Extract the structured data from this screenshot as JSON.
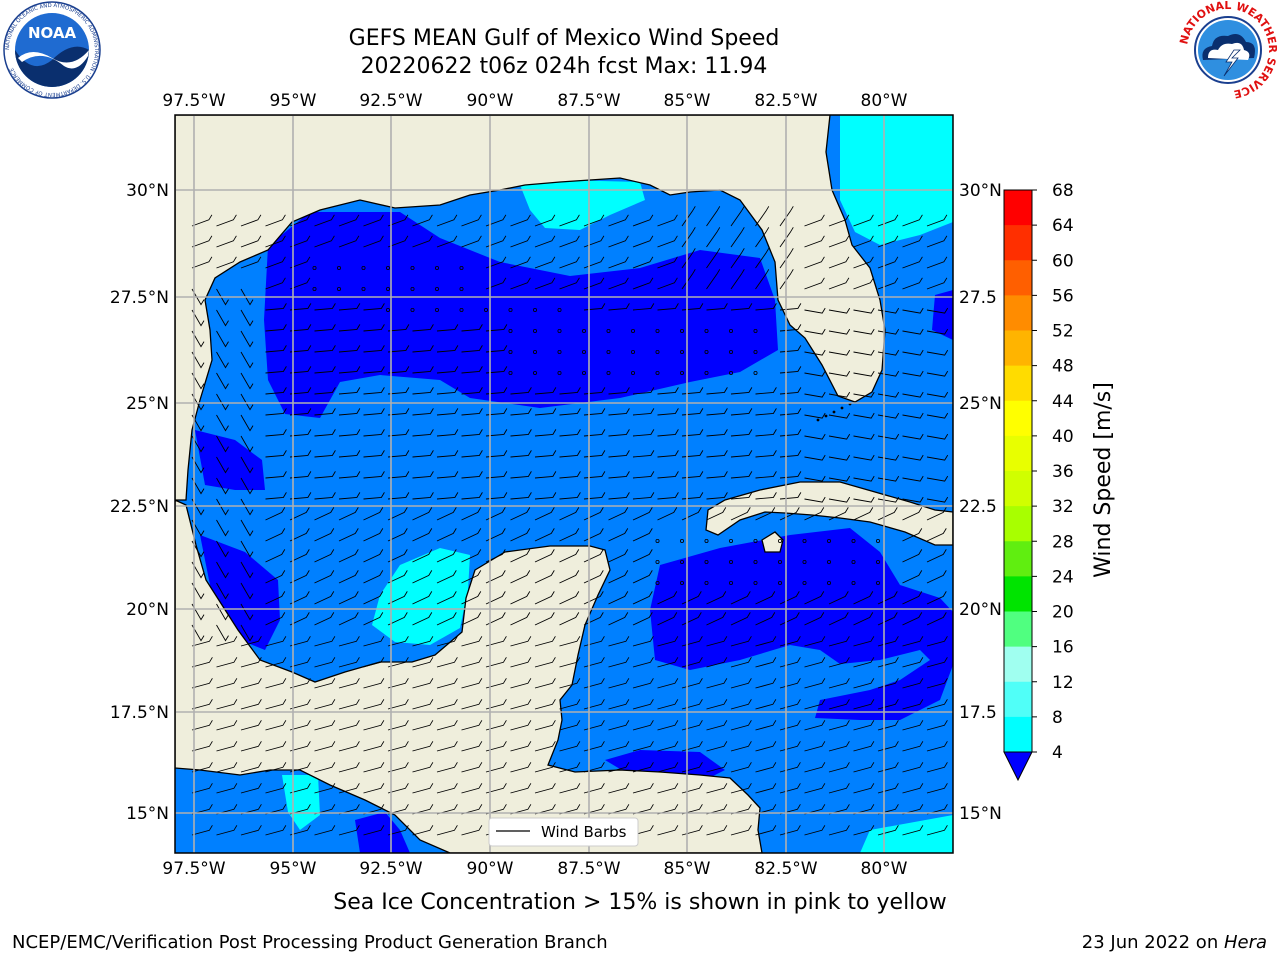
{
  "title": {
    "line1": "GEFS MEAN Gulf of Mexico Wind Speed",
    "line2": "20220622 t06z 024h fcst   Max: 11.94"
  },
  "axes": {
    "lon_ticks": [
      "97.5°W",
      "95°W",
      "92.5°W",
      "90°W",
      "87.5°W",
      "85°W",
      "82.5°W",
      "80°W"
    ],
    "lat_ticks_left": [
      "30°N",
      "27.5°N",
      "25°N",
      "22.5°N",
      "20°N",
      "17.5°N",
      "15°N"
    ],
    "lat_ticks_right": [
      "30°N",
      "27.5",
      "25°N",
      "22.5",
      "20°N",
      "17.5",
      "15°N"
    ]
  },
  "legend": {
    "label": "Wind Barbs"
  },
  "colorbar": {
    "label": "Wind Speed [m/s]",
    "levels": [
      "68",
      "64",
      "60",
      "56",
      "52",
      "48",
      "44",
      "40",
      "36",
      "32",
      "28",
      "24",
      "20",
      "16",
      "12",
      "8",
      "4"
    ],
    "colors": [
      "#ff0000",
      "#ff2f00",
      "#ff5f00",
      "#ff8c00",
      "#ffb400",
      "#ffdc00",
      "#ffff00",
      "#e8ff00",
      "#d0ff00",
      "#a8ff00",
      "#60ee10",
      "#00e400",
      "#50ff80",
      "#a0fff0",
      "#50fff8",
      "#00ffff",
      "#0080ff"
    ],
    "under_color": "#0000ff"
  },
  "map_colors": {
    "land": "#efeedc",
    "speed_0_4": "#0000ff",
    "speed_4_8": "#0080ff",
    "speed_8_12": "#00ffff"
  },
  "subtitle": "Sea Ice Concentration > 15% is shown in pink to yellow",
  "footer": {
    "left": "NCEP/EMC/Verification Post Processing Product Generation Branch",
    "right_date": "23 Jun 2022 on ",
    "right_machine": "Hera"
  },
  "logos": {
    "noaa": {
      "text": "NOAA",
      "ring_text": "NATIONAL OCEANIC AND ATMOSPHERIC ADMINISTRATION · U.S. DEPARTMENT OF COMMERCE"
    },
    "nws": {
      "ring_text": "NATIONAL WEATHER SERVICE"
    }
  }
}
